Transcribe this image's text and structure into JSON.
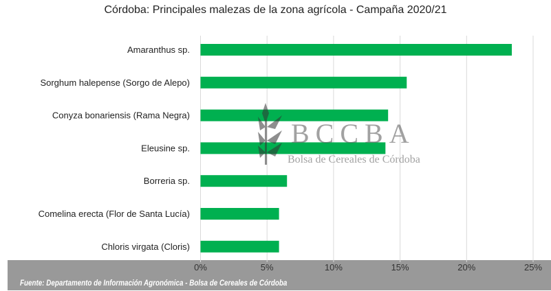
{
  "chart_data": {
    "type": "bar",
    "orientation": "horizontal",
    "title": "Córdoba: Principales malezas de la zona agrícola - Campaña 2020/21",
    "categories": [
      "Amaranthus sp.",
      "Sorghum halepense (Sorgo de Alepo)",
      "Conyza bonariensis (Rama Negra)",
      "Eleusine sp.",
      "Borreria sp.",
      "Comelina erecta (Flor de Santa Lucía)",
      "Chloris virgata (Cloris)"
    ],
    "values": [
      23.4,
      15.5,
      14.1,
      13.9,
      6.5,
      5.9,
      5.9
    ],
    "xlim": [
      0,
      25
    ],
    "xticks": [
      "0%",
      "5%",
      "10%",
      "15%",
      "20%",
      "25%"
    ],
    "grid": true,
    "bar_color": "#00B050",
    "xlabel": "",
    "ylabel": ""
  },
  "watermark": {
    "logo": "BCCBA",
    "subtitle": "Bolsa de Cereales de Córdoba"
  },
  "source": "Fuente: Departamento de Información Agronómica - Bolsa de Cereales de Córdoba"
}
